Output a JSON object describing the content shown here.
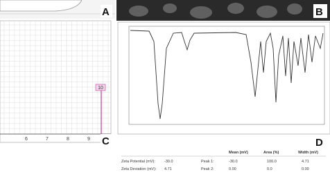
{
  "panels": {
    "a": {
      "label": "A"
    },
    "b": {
      "label": "B"
    },
    "c": {
      "label": "C",
      "x_ticks": [
        "6",
        "7",
        "8",
        "9"
      ],
      "marker": "10"
    },
    "d": {
      "label": "D",
      "table": {
        "header": [
          "Mean (mV)",
          "Area (%)",
          "Width (mV)"
        ],
        "rows": [
          [
            "Zeta Potential (mV):",
            "-30.0",
            "Peak 1:",
            "-30.0",
            "100.0",
            "4.71"
          ],
          [
            "Zeta Deviation (mV):",
            "4.71",
            "Peak 2:",
            "0.00",
            "0.0",
            "0.00"
          ]
        ]
      }
    }
  }
}
